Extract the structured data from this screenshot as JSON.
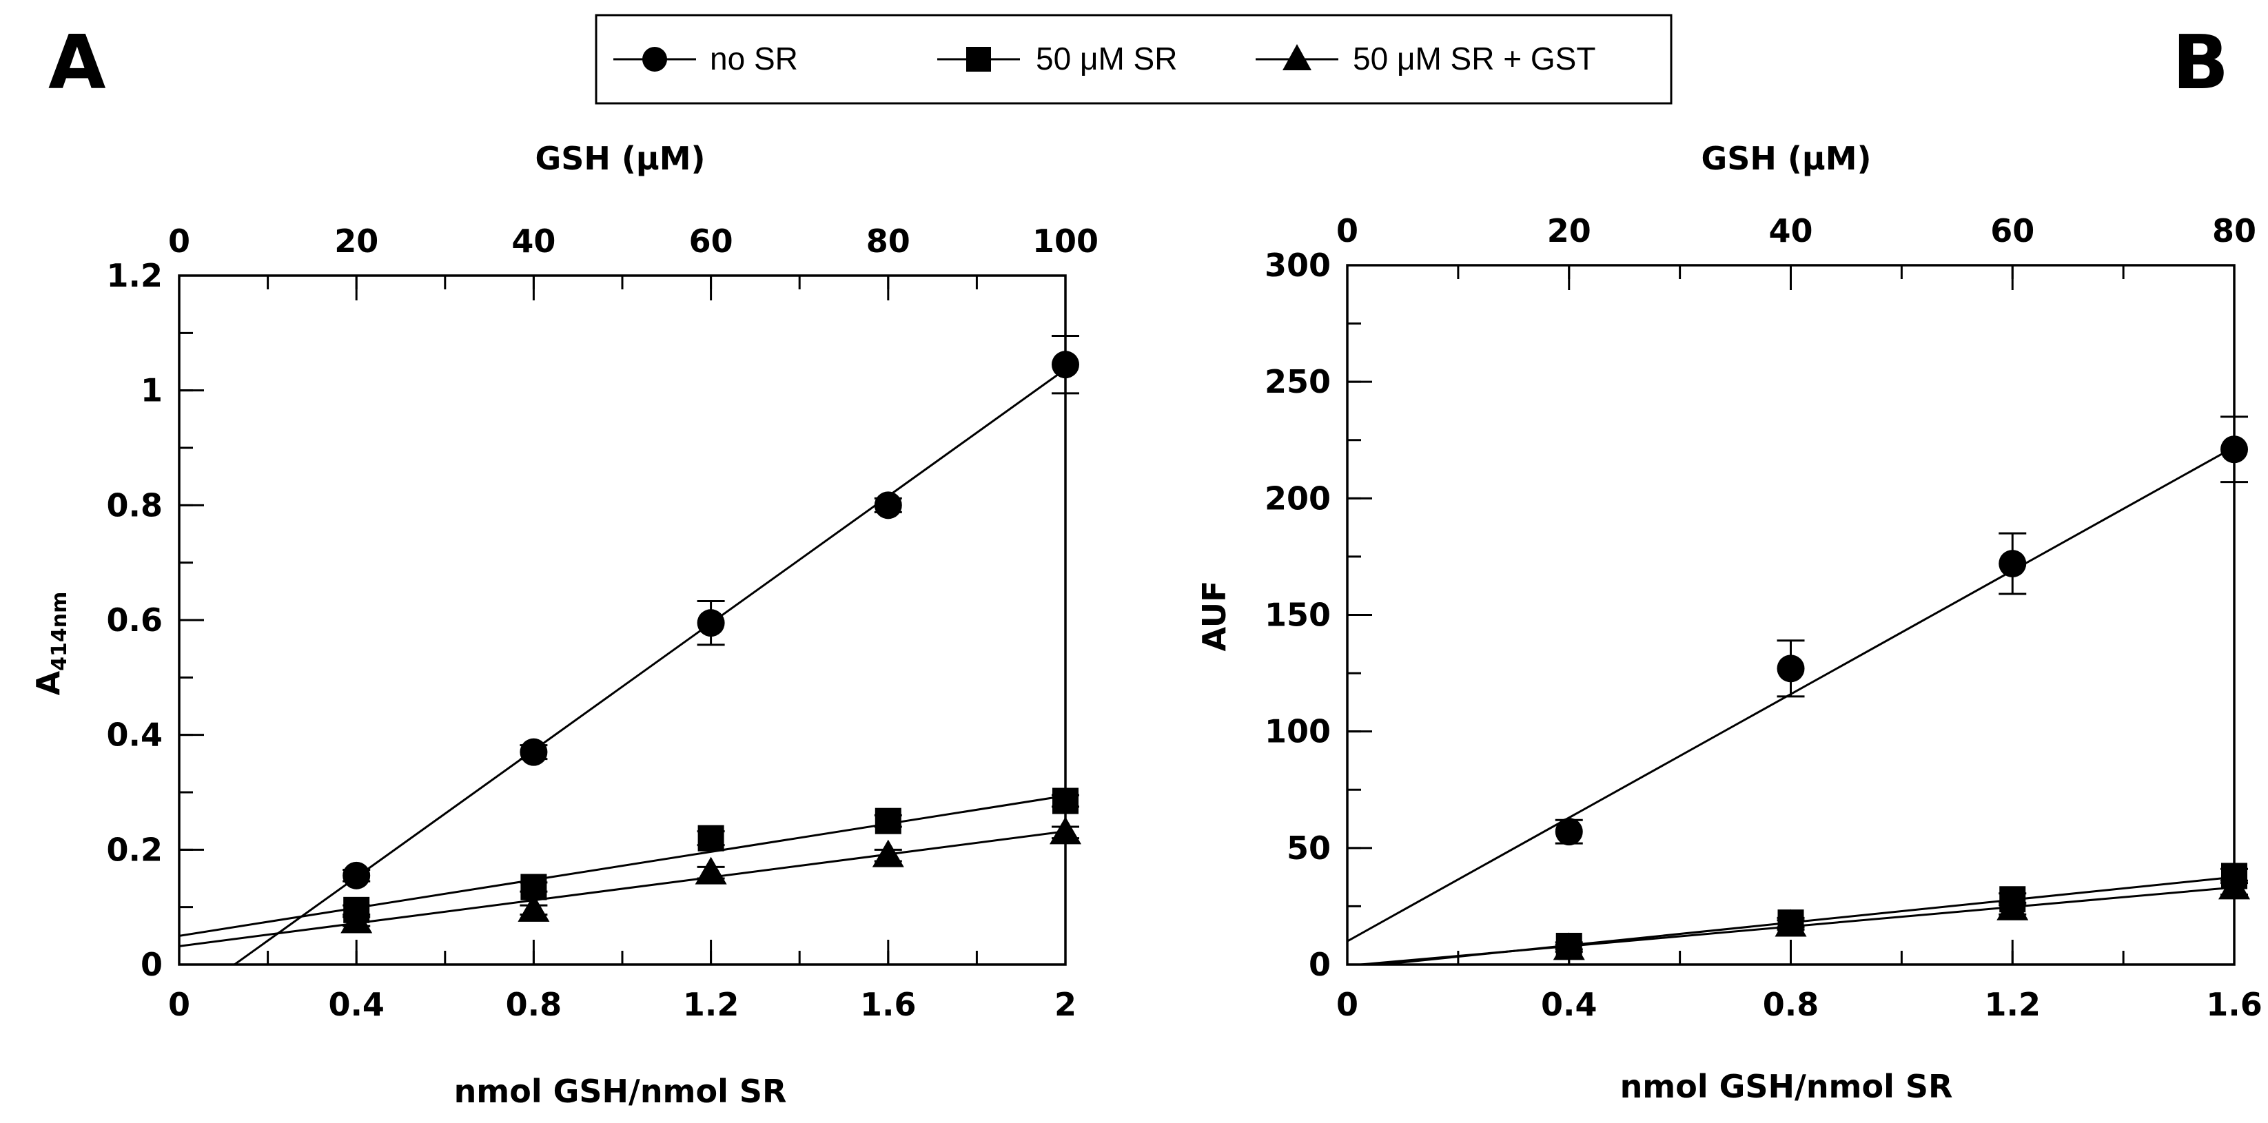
{
  "legend": {
    "entries": [
      {
        "label": "no SR",
        "marker": "circle"
      },
      {
        "label": "50 μM SR",
        "marker": "square"
      },
      {
        "label": "50 μM SR + GST",
        "marker": "triangle"
      }
    ]
  },
  "chart_data": [
    {
      "type": "scatter",
      "panel_label": "A",
      "title": "",
      "xlabel": "nmol GSH/nmol SR",
      "ylabel_main": "A",
      "ylabel_sub": "414nm",
      "top_xlabel": "GSH (μM)",
      "xlim": [
        0,
        2
      ],
      "ylim": [
        0,
        1.2
      ],
      "top_xlim": [
        0,
        100
      ],
      "x_ticks": [
        0,
        0.4,
        0.8,
        1.2,
        1.6,
        2
      ],
      "x_tick_labels": [
        "0",
        "0.4",
        "0.8",
        "1.2",
        "1.6",
        "2"
      ],
      "x_minor_step": 0.2,
      "y_ticks": [
        0,
        0.2,
        0.4,
        0.6,
        0.8,
        1,
        1.2
      ],
      "y_tick_labels": [
        "0",
        "0.2",
        "0.4",
        "0.6",
        "0.8",
        "1",
        "1.2"
      ],
      "y_minor_step": 0.1,
      "top_ticks": [
        0,
        20,
        40,
        60,
        80,
        100
      ],
      "top_tick_labels": [
        "0",
        "20",
        "40",
        "60",
        "80",
        "100"
      ],
      "top_minor_step": 10,
      "series": [
        {
          "name": "no SR",
          "marker": "circle",
          "x": [
            0.4,
            0.8,
            1.2,
            1.6,
            2.0
          ],
          "y": [
            0.155,
            0.37,
            0.595,
            0.8,
            1.045
          ],
          "err": [
            0.01,
            0.012,
            0.038,
            0.012,
            0.05
          ],
          "fit": [
            -0.069,
            0.553
          ]
        },
        {
          "name": "50 μM SR",
          "marker": "square",
          "x": [
            0.4,
            0.8,
            1.2,
            1.6,
            2.0
          ],
          "y": [
            0.095,
            0.135,
            0.22,
            0.25,
            0.285
          ],
          "err": [
            0.008,
            0.008,
            0.012,
            0.01,
            0.01
          ],
          "fit": [
            0.05,
            0.122
          ]
        },
        {
          "name": "50 μM SR + GST",
          "marker": "triangle",
          "x": [
            0.4,
            0.8,
            1.2,
            1.6,
            2.0
          ],
          "y": [
            0.075,
            0.095,
            0.16,
            0.19,
            0.23
          ],
          "err": [
            0.008,
            0.008,
            0.01,
            0.01,
            0.01
          ],
          "fit": [
            0.032,
            0.1
          ]
        }
      ]
    },
    {
      "type": "scatter",
      "panel_label": "B",
      "title": "",
      "xlabel": "nmol GSH/nmol SR",
      "ylabel_main": "AUF",
      "ylabel_sub": "",
      "top_xlabel": "GSH (μM)",
      "xlim": [
        0,
        1.6
      ],
      "ylim": [
        0,
        300
      ],
      "top_xlim": [
        0,
        80
      ],
      "x_ticks": [
        0,
        0.4,
        0.8,
        1.2,
        1.6
      ],
      "x_tick_labels": [
        "0",
        "0.4",
        "0.8",
        "1.2",
        "1.6"
      ],
      "x_minor_step": 0.2,
      "y_ticks": [
        0,
        50,
        100,
        150,
        200,
        250,
        300
      ],
      "y_tick_labels": [
        "0",
        "50",
        "100",
        "150",
        "200",
        "250",
        "300"
      ],
      "y_minor_step": 25,
      "top_ticks": [
        0,
        20,
        40,
        60,
        80
      ],
      "top_tick_labels": [
        "0",
        "20",
        "40",
        "60",
        "80"
      ],
      "top_minor_step": 10,
      "series": [
        {
          "name": "no SR",
          "marker": "circle",
          "x": [
            0.4,
            0.8,
            1.2,
            1.6
          ],
          "y": [
            57,
            127,
            172,
            221
          ],
          "err": [
            5,
            12,
            13,
            14
          ],
          "fit": [
            10,
            132.5
          ]
        },
        {
          "name": "50 μM SR",
          "marker": "square",
          "x": [
            0.4,
            0.8,
            1.2,
            1.6
          ],
          "y": [
            8,
            18,
            28,
            38
          ],
          "err": [
            1.5,
            2,
            2.5,
            3
          ],
          "fit": [
            -1.5,
            24.4
          ]
        },
        {
          "name": "50 μM SR + GST",
          "marker": "triangle",
          "x": [
            0.4,
            0.8,
            1.2,
            1.6
          ],
          "y": [
            7,
            17,
            24,
            33
          ],
          "err": [
            1.5,
            2,
            2.5,
            3
          ],
          "fit": [
            -0.5,
            21
          ]
        }
      ]
    }
  ]
}
